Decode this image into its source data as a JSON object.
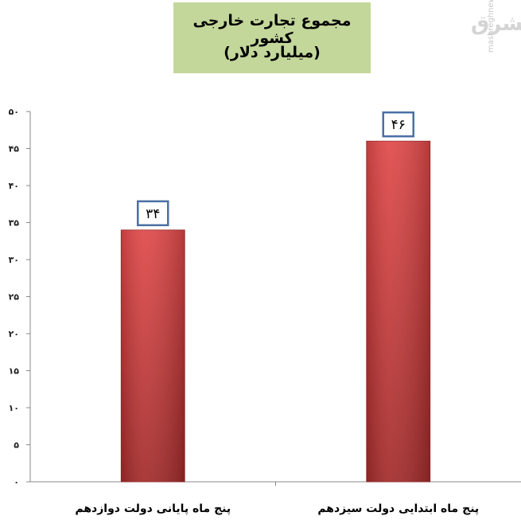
{
  "header": {
    "title_line1": "مجموع تجارت خارجی کشور",
    "title_line2": "(میلیارد دلار)"
  },
  "watermark": {
    "text": "mashreghnews.ir",
    "logo_text": "مشرق"
  },
  "colors": {
    "bar": "#d94040",
    "title_bg": "#c4d79b",
    "label_border": "#4a6fa5"
  },
  "chart_data": {
    "type": "bar",
    "title": "مجموع تجارت خارجی کشور",
    "subtitle": "(میلیارد دلار)",
    "categories": [
      "پنج ماه پایانی دولت دوازدهم",
      "پنج ماه ابتدایی دولت سیزدهم"
    ],
    "values": [
      34,
      46
    ],
    "value_labels": [
      "۳۴",
      "۴۶"
    ],
    "ylim": [
      0,
      50
    ],
    "y_ticks": [
      0,
      5,
      10,
      15,
      20,
      25,
      30,
      35,
      40,
      45,
      50
    ],
    "y_tick_labels": [
      "۰",
      "۵",
      "۱۰",
      "۱۵",
      "۲۰",
      "۲۵",
      "۳۰",
      "۳۵",
      "۴۰",
      "۴۵",
      "۵۰"
    ],
    "grid": false,
    "legend": "none"
  }
}
